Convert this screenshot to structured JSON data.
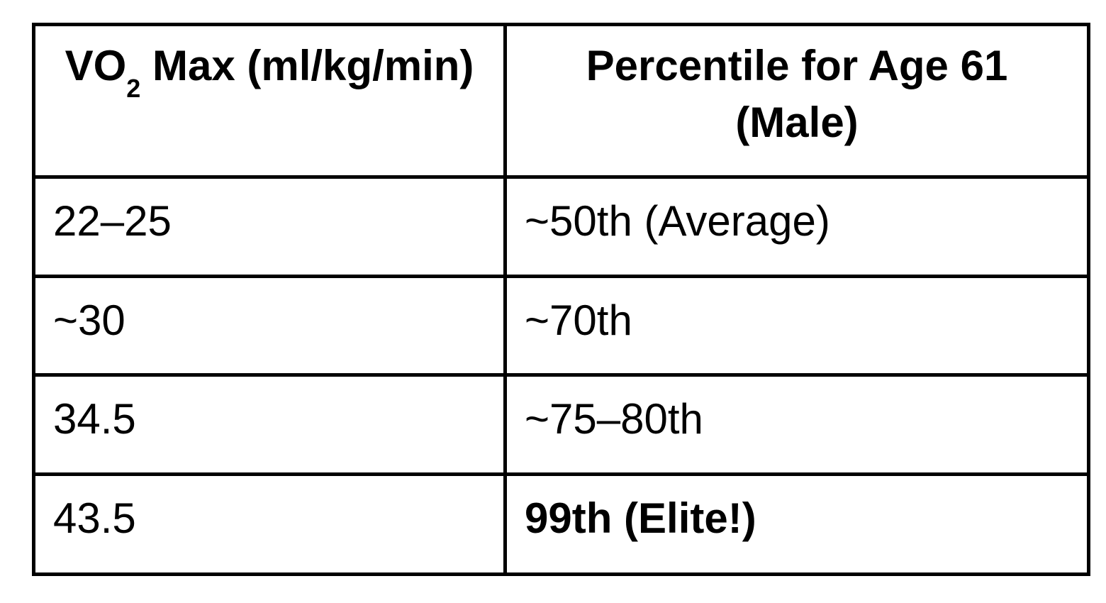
{
  "page": {
    "background_color": "#ffffff",
    "text_color": "#000000",
    "border_color": "#000000"
  },
  "table": {
    "header": {
      "col1_prefix": "VO",
      "col1_subscript": "2",
      "col1_suffix": " Max (ml/kg/min)",
      "col2": "Percentile for Age 61 (Male)"
    },
    "rows": [
      {
        "vo2max": "22–25",
        "percentile": "~50th (Average)",
        "emphasis": false
      },
      {
        "vo2max": "~30",
        "percentile": "~70th",
        "emphasis": false
      },
      {
        "vo2max": "34.5",
        "percentile": "~75–80th",
        "emphasis": false
      },
      {
        "vo2max": "43.5",
        "percentile": "99th (Elite!)",
        "emphasis": true
      }
    ]
  },
  "chart_data": {
    "type": "table",
    "title": "",
    "columns": [
      "VO2 Max (ml/kg/min)",
      "Percentile for Age 61 (Male)"
    ],
    "cells": [
      [
        "22–25",
        "~50th (Average)"
      ],
      [
        "~30",
        "~70th"
      ],
      [
        "34.5",
        "~75–80th"
      ],
      [
        "43.5",
        "99th (Elite!)"
      ]
    ]
  }
}
